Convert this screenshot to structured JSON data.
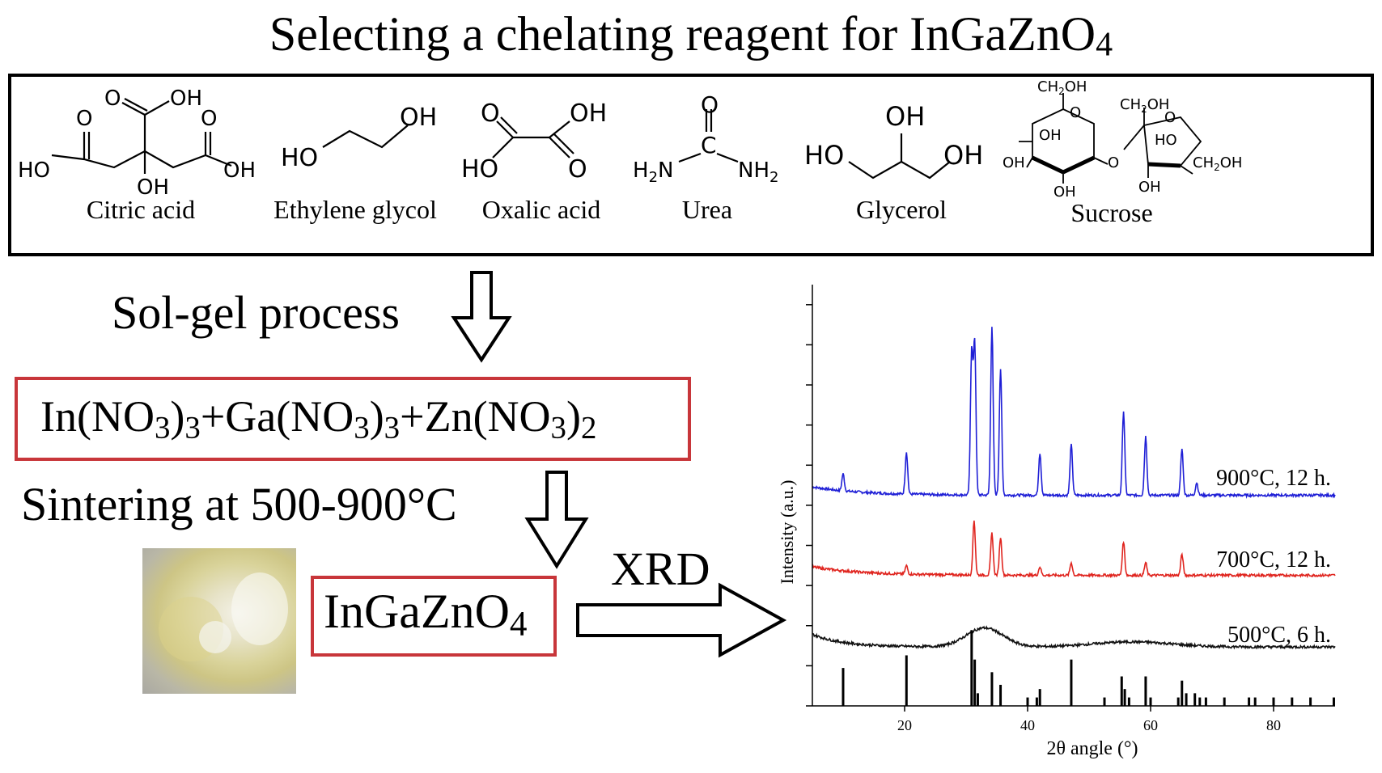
{
  "title": "Selecting a chelating reagent for InGaZnO",
  "title_sub": "4",
  "molecules": [
    {
      "name": "Citric acid"
    },
    {
      "name": "Ethylene glycol"
    },
    {
      "name": "Oxalic acid"
    },
    {
      "name": "Urea"
    },
    {
      "name": "Glycerol"
    },
    {
      "name": "Sucrose"
    }
  ],
  "atoms": {
    "O": "O",
    "OH": "OH",
    "HO": "HO",
    "C": "C",
    "H2N": "H",
    "NH2": "NH",
    "n2": "2",
    "N": "N",
    "CH2OH": "CH",
    "sub2": "2",
    "OHsuffix": "OH"
  },
  "steps": {
    "sol_gel": "Sol-gel process",
    "sintering": "Sintering at 500-900°C",
    "xrd": "XRD"
  },
  "reactants": {
    "part1": "In(NO",
    "s1": "3",
    "part1b": ")",
    "s1b": "3",
    "plus": "+",
    "part2": "Ga(NO",
    "s2": "3",
    "part2b": ")",
    "s2b": "3",
    "part3": "Zn(NO",
    "s3": "3",
    "part3b": ")",
    "s3b": "2"
  },
  "product": {
    "text": "InGaZnO",
    "sub": "4"
  },
  "chart_data": {
    "type": "line",
    "xlabel": "2θ angle (°)",
    "ylabel": "Intensity (a.u.)",
    "xlim": [
      5,
      90
    ],
    "xticks": [
      20,
      40,
      60,
      80
    ],
    "series": [
      {
        "name": "900°C, 12 h.",
        "color": "#1f1fd6",
        "baseline": 0.5,
        "peaks": [
          [
            10,
            0.04
          ],
          [
            20.3,
            0.1
          ],
          [
            30.9,
            0.34
          ],
          [
            31.4,
            0.36
          ],
          [
            34.2,
            0.4
          ],
          [
            35.6,
            0.3
          ],
          [
            42.0,
            0.1
          ],
          [
            47.1,
            0.12
          ],
          [
            55.6,
            0.2
          ],
          [
            59.2,
            0.14
          ],
          [
            65.1,
            0.11
          ],
          [
            67.5,
            0.03
          ]
        ]
      },
      {
        "name": "700°C, 12 h.",
        "color": "#e0251f",
        "baseline": 0.31,
        "peaks": [
          [
            20.3,
            0.02
          ],
          [
            31.3,
            0.13
          ],
          [
            34.2,
            0.1
          ],
          [
            35.6,
            0.09
          ],
          [
            42.0,
            0.02
          ],
          [
            47.1,
            0.03
          ],
          [
            55.6,
            0.08
          ],
          [
            59.2,
            0.03
          ],
          [
            65.1,
            0.05
          ]
        ]
      },
      {
        "name": "500°C, 6 h.",
        "color": "#111111",
        "baseline": 0.14,
        "peaks": []
      }
    ],
    "reference": {
      "color": "#000000",
      "sticks": [
        [
          10,
          0.09
        ],
        [
          20.3,
          0.12
        ],
        [
          30.9,
          0.18
        ],
        [
          31.4,
          0.11
        ],
        [
          31.9,
          0.03
        ],
        [
          34.2,
          0.08
        ],
        [
          35.6,
          0.05
        ],
        [
          40,
          0.02
        ],
        [
          41.5,
          0.02
        ],
        [
          42.0,
          0.04
        ],
        [
          47.1,
          0.11
        ],
        [
          52.5,
          0.02
        ],
        [
          55.3,
          0.07
        ],
        [
          55.8,
          0.04
        ],
        [
          56.5,
          0.02
        ],
        [
          59.2,
          0.07
        ],
        [
          60,
          0.02
        ],
        [
          64.5,
          0.02
        ],
        [
          65.1,
          0.06
        ],
        [
          65.8,
          0.03
        ],
        [
          67.2,
          0.03
        ],
        [
          68,
          0.02
        ],
        [
          69,
          0.02
        ],
        [
          72,
          0.02
        ],
        [
          76,
          0.02
        ],
        [
          77,
          0.02
        ],
        [
          80,
          0.02
        ],
        [
          83,
          0.02
        ],
        [
          86,
          0.02
        ],
        [
          89.8,
          0.02
        ]
      ]
    }
  }
}
